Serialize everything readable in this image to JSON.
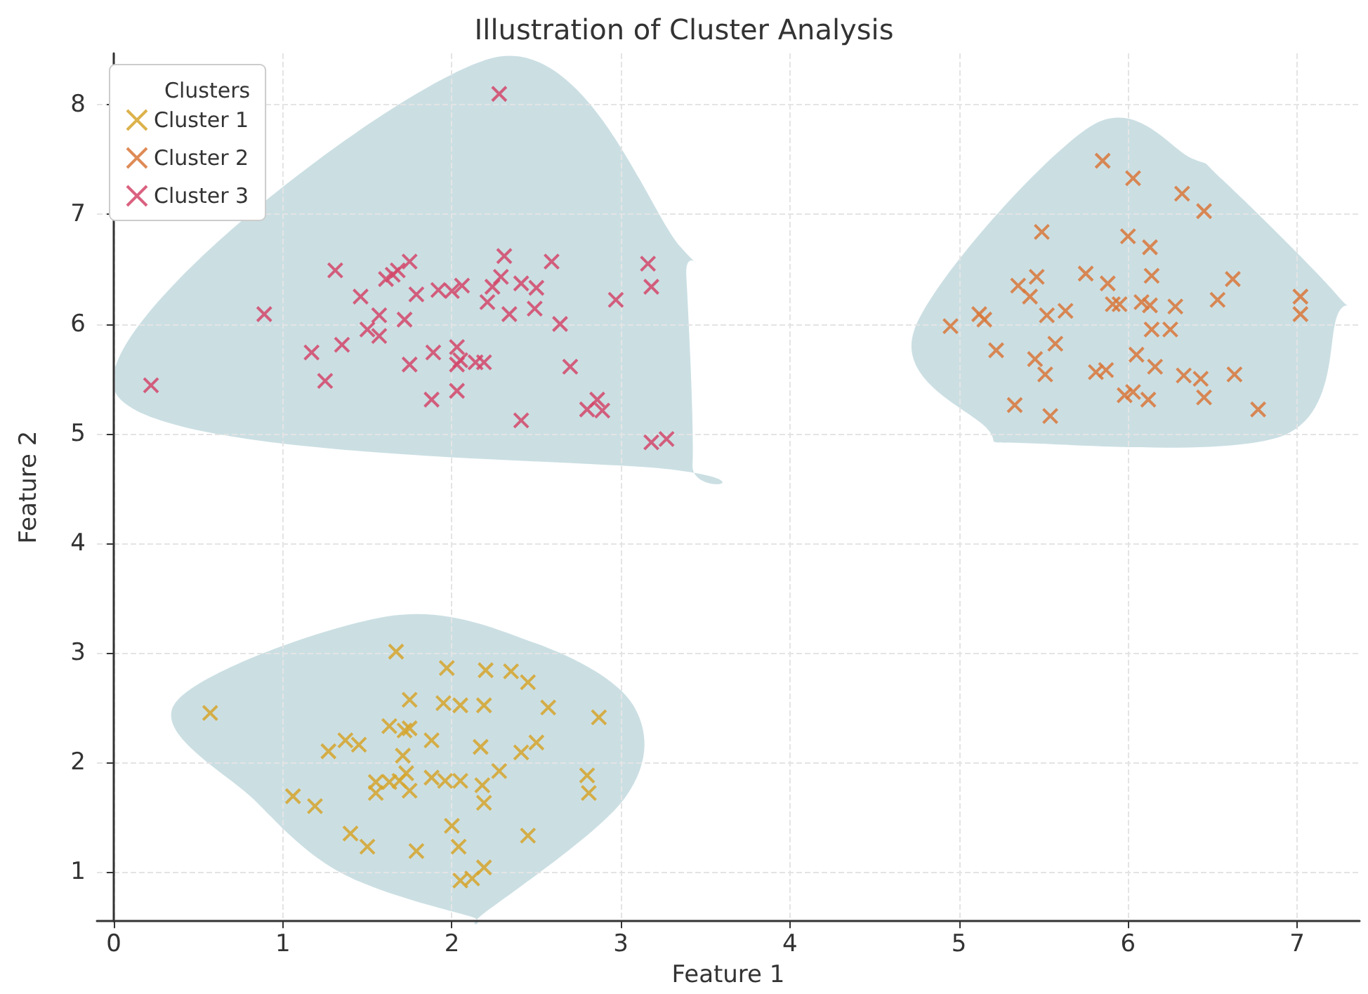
{
  "chart_data": {
    "type": "scatter",
    "title": "Illustration of Cluster Analysis",
    "xlabel": "Feature 1",
    "ylabel": "Feature 2",
    "legend_title": "Clusters",
    "xlim": [
      -0.1,
      7.37
    ],
    "ylim": [
      0.55,
      8.47
    ],
    "xticks": [
      0,
      1,
      2,
      3,
      4,
      5,
      6,
      7
    ],
    "yticks": [
      1,
      2,
      3,
      4,
      5,
      6,
      7,
      8
    ],
    "grid": true,
    "legend": "top left",
    "marker": "cross",
    "series": [
      {
        "name": "Cluster 1",
        "color": "#d6a52c",
        "x": [
          1.67,
          0.57,
          1.97,
          2.2,
          2.35,
          2.45,
          1.75,
          1.95,
          2.05,
          2.19,
          2.57,
          2.87,
          1.63,
          1.72,
          1.75,
          1.37,
          1.45,
          1.27,
          1.88,
          2.17,
          2.5,
          2.41,
          1.71,
          2.28,
          1.73,
          1.55,
          1.63,
          1.69,
          1.88,
          1.96,
          2.05,
          1.55,
          1.75,
          2.18,
          2.19,
          2.8,
          2.81,
          1.06,
          1.19,
          2.0,
          1.4,
          1.5,
          1.79,
          2.04,
          2.45,
          2.19,
          2.12,
          2.05
        ],
        "values": [
          3.01,
          2.45,
          2.86,
          2.84,
          2.83,
          2.73,
          2.57,
          2.54,
          2.52,
          2.52,
          2.5,
          2.41,
          2.33,
          2.29,
          2.31,
          2.2,
          2.16,
          2.1,
          2.2,
          2.14,
          2.18,
          2.09,
          2.06,
          1.92,
          1.9,
          1.82,
          1.82,
          1.83,
          1.86,
          1.83,
          1.83,
          1.72,
          1.74,
          1.79,
          1.63,
          1.88,
          1.72,
          1.69,
          1.6,
          1.42,
          1.35,
          1.23,
          1.19,
          1.23,
          1.33,
          1.04,
          0.94,
          0.92
        ]
      },
      {
        "name": "Cluster 2",
        "color": "#d9773a",
        "x": [
          5.85,
          6.03,
          6.32,
          6.45,
          5.49,
          6.0,
          6.13,
          6.14,
          6.62,
          5.75,
          5.88,
          5.46,
          5.35,
          5.42,
          5.91,
          5.95,
          6.08,
          6.13,
          6.28,
          6.53,
          7.02,
          7.02,
          5.12,
          5.15,
          5.52,
          5.63,
          4.95,
          6.14,
          6.25,
          5.22,
          5.57,
          5.45,
          5.51,
          6.05,
          6.16,
          5.81,
          5.87,
          6.33,
          6.43,
          6.63,
          5.98,
          6.03,
          6.12,
          6.45,
          5.33,
          5.54,
          6.77
        ],
        "values": [
          7.49,
          7.33,
          7.19,
          7.03,
          6.84,
          6.8,
          6.7,
          6.44,
          6.41,
          6.46,
          6.37,
          6.43,
          6.35,
          6.25,
          6.18,
          6.18,
          6.2,
          6.17,
          6.16,
          6.22,
          6.25,
          6.09,
          6.09,
          6.04,
          6.08,
          6.12,
          5.98,
          5.95,
          5.95,
          5.76,
          5.82,
          5.68,
          5.54,
          5.72,
          5.61,
          5.56,
          5.58,
          5.53,
          5.5,
          5.54,
          5.35,
          5.38,
          5.31,
          5.33,
          5.26,
          5.16,
          5.22
        ]
      },
      {
        "name": "Cluster 3",
        "color": "#d4466a",
        "x": [
          0.22,
          0.89,
          1.17,
          1.25,
          1.31,
          1.35,
          1.46,
          1.5,
          1.57,
          1.57,
          1.61,
          1.65,
          1.68,
          1.75,
          1.72,
          1.75,
          1.79,
          1.88,
          1.89,
          1.92,
          2.0,
          2.03,
          2.03,
          2.05,
          2.03,
          2.06,
          2.14,
          2.19,
          2.24,
          2.21,
          2.29,
          2.31,
          2.34,
          2.41,
          2.41,
          2.49,
          2.5,
          2.59,
          2.64,
          2.7,
          2.8,
          2.86,
          2.89,
          2.97,
          3.16,
          3.18,
          3.18,
          3.27,
          2.28
        ],
        "values": [
          5.44,
          6.09,
          5.74,
          5.48,
          6.49,
          5.81,
          6.25,
          5.95,
          5.89,
          6.08,
          6.41,
          6.45,
          6.49,
          6.57,
          6.04,
          5.63,
          6.27,
          5.31,
          5.74,
          6.31,
          6.3,
          5.63,
          5.79,
          5.67,
          5.39,
          6.35,
          5.65,
          5.65,
          6.34,
          6.2,
          6.43,
          6.62,
          6.09,
          5.12,
          6.37,
          6.14,
          6.33,
          6.57,
          6.0,
          5.61,
          5.22,
          5.31,
          5.21,
          6.22,
          6.55,
          6.34,
          4.92,
          4.95,
          8.1
        ]
      }
    ]
  }
}
